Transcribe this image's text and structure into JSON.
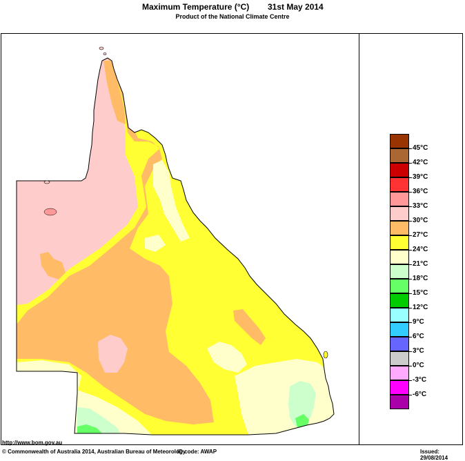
{
  "header": {
    "title": "Maximum Temperature (°C)",
    "date": "31st May 2014",
    "subtitle": "Product of the National Climate Centre"
  },
  "legend": {
    "items": [
      {
        "color": "#993300",
        "label": ""
      },
      {
        "color": "#aa6633",
        "label": "45°C"
      },
      {
        "color": "#cc0000",
        "label": "42°C"
      },
      {
        "color": "#ff3333",
        "label": "39°C"
      },
      {
        "color": "#ff9999",
        "label": "36°C"
      },
      {
        "color": "#ffcccc",
        "label": "33°C"
      },
      {
        "color": "#ffbb66",
        "label": "30°C"
      },
      {
        "color": "#ffff33",
        "label": "27°C"
      },
      {
        "color": "#ffffcc",
        "label": "24°C"
      },
      {
        "color": "#ccffcc",
        "label": "21°C"
      },
      {
        "color": "#66ff66",
        "label": "18°C"
      },
      {
        "color": "#00cc00",
        "label": "15°C"
      },
      {
        "color": "#99ffff",
        "label": "12°C"
      },
      {
        "color": "#33ccff",
        "label": "9°C"
      },
      {
        "color": "#6666ff",
        "label": "6°C"
      },
      {
        "color": "#cccccc",
        "label": "3°C"
      },
      {
        "color": "#ffaaff",
        "label": "0°C"
      },
      {
        "color": "#ff00ff",
        "label": "-3°C"
      },
      {
        "color": "#aa00aa",
        "label": "-6°C"
      }
    ]
  },
  "footer": {
    "url": "http://www.bom.gov.au",
    "copyright": "© Commonwealth of Australia 2014, Australian Bureau of Meteorology",
    "id_code": "ID code: AWAP",
    "issued": "Issued: 29/08/2014"
  }
}
